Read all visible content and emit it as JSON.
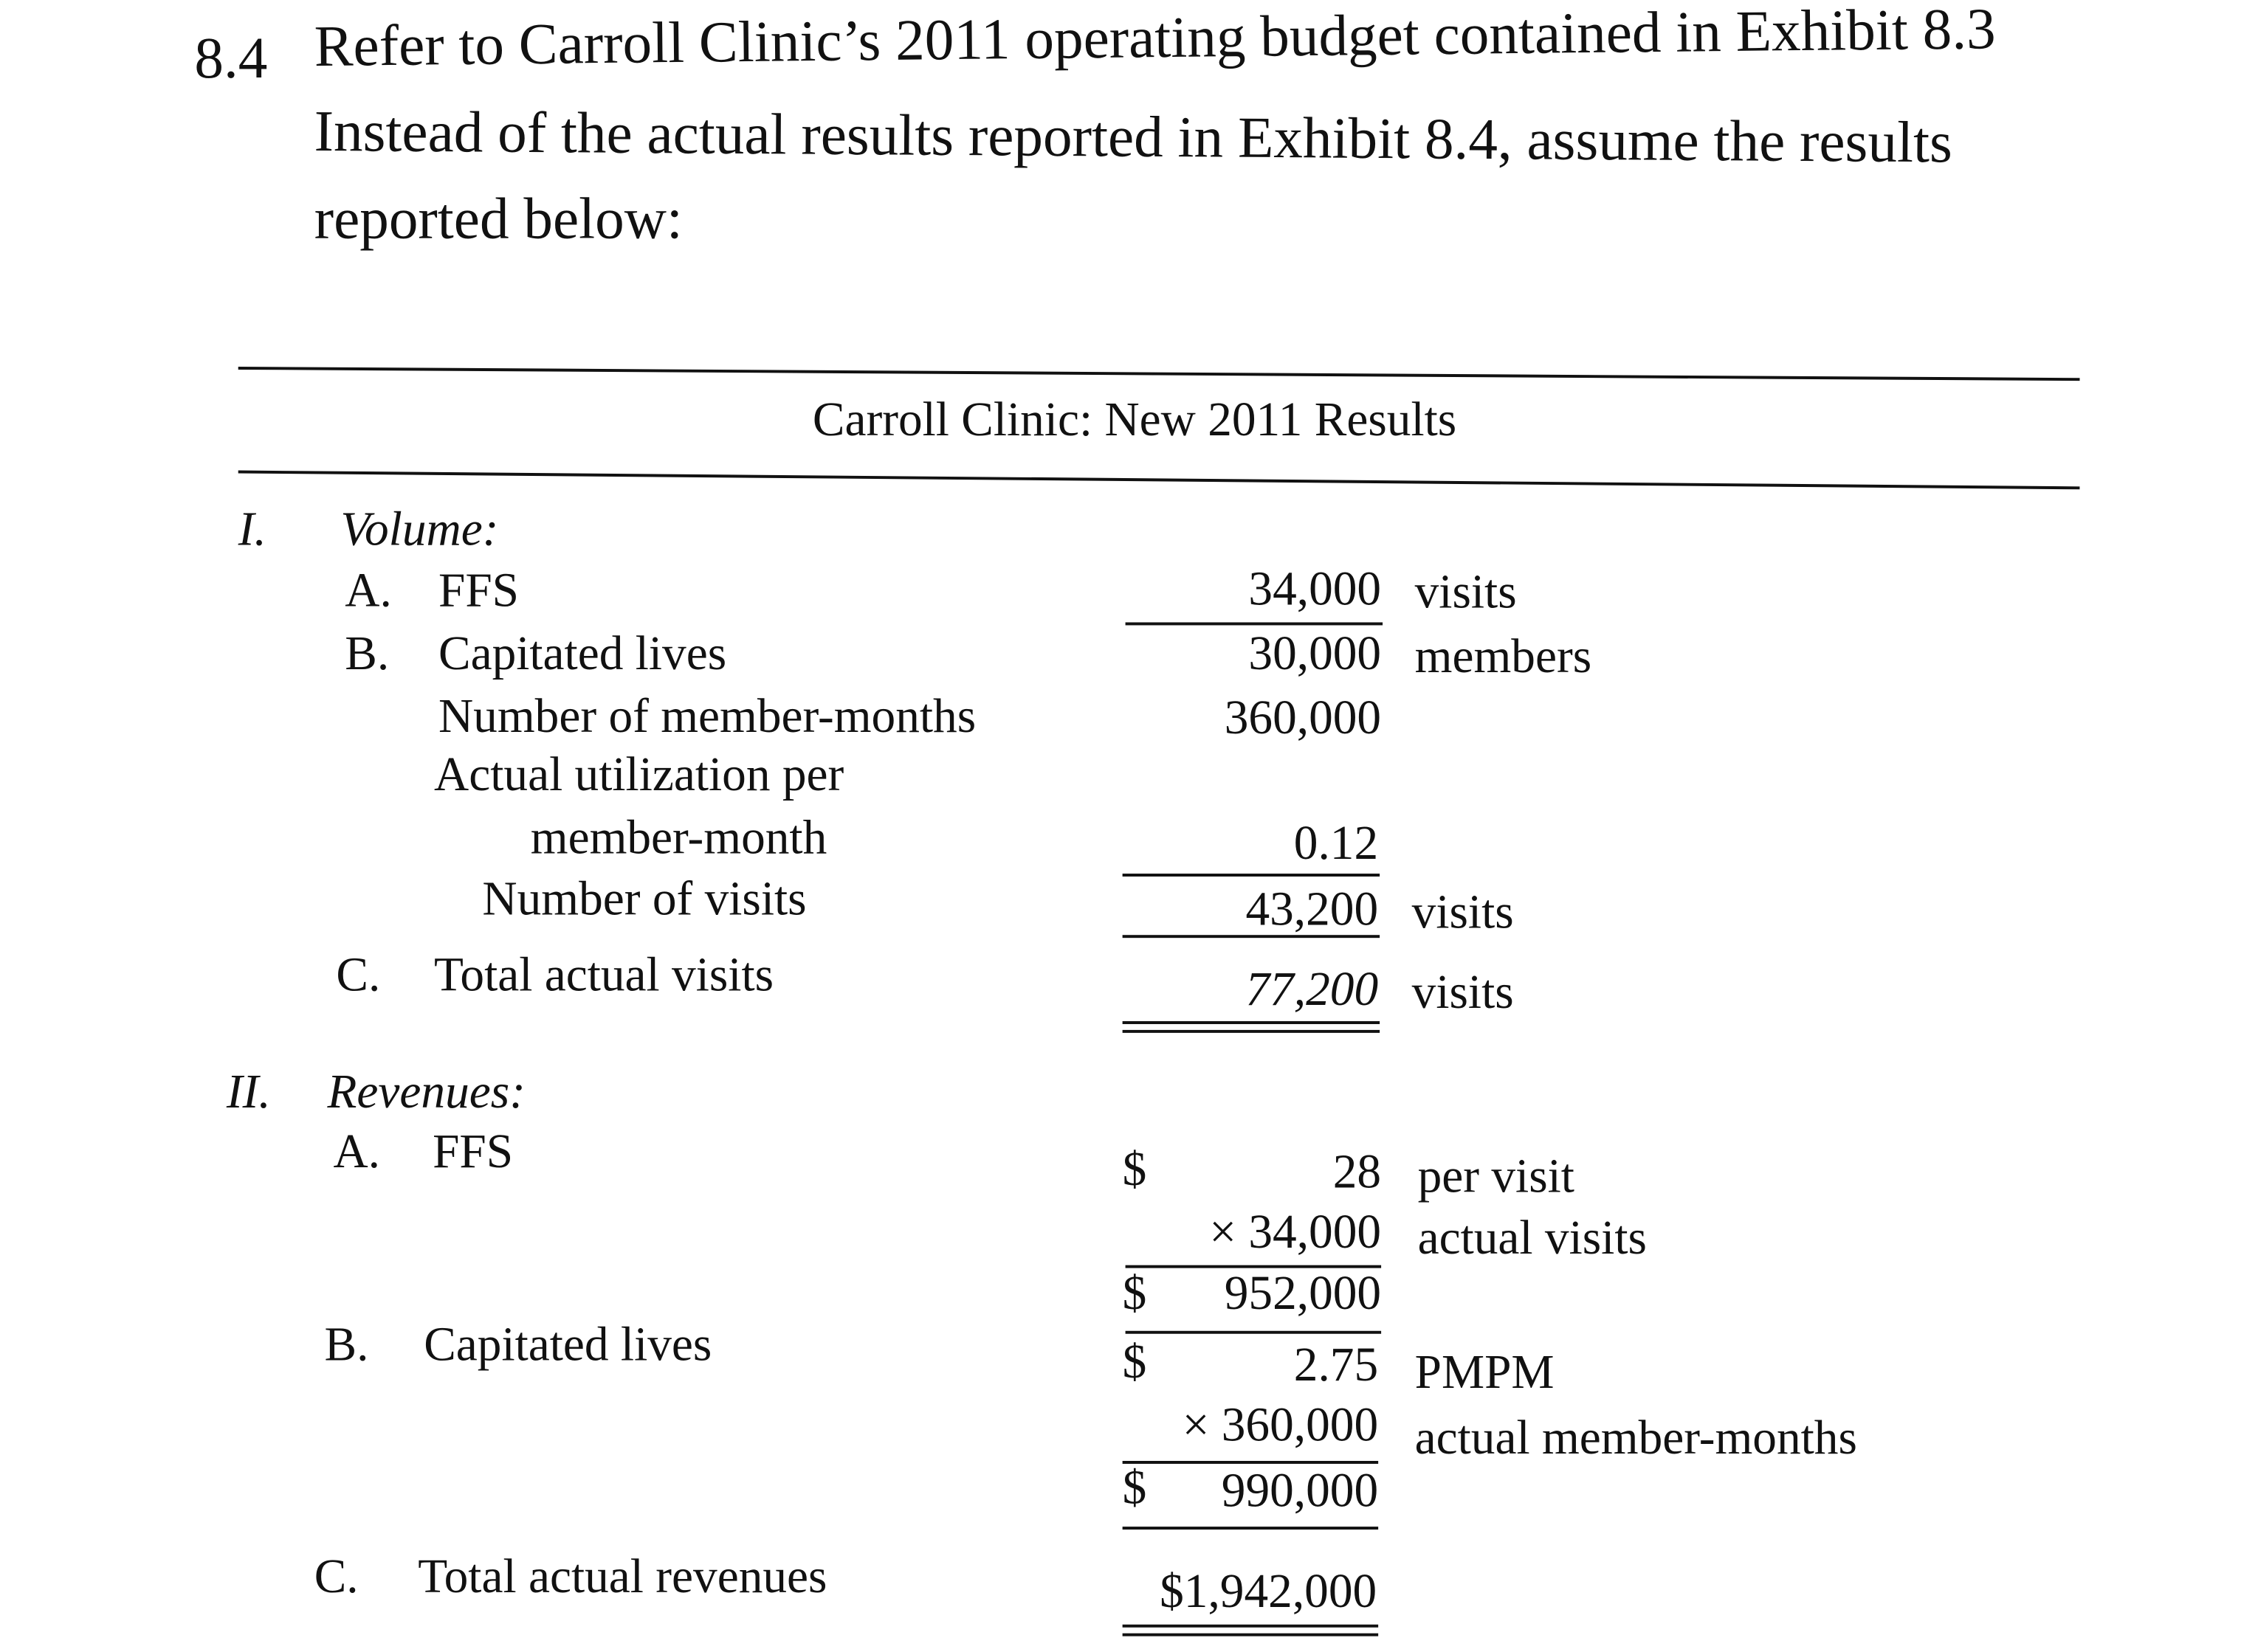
{
  "problem": {
    "number": "8.4",
    "line1": "Refer to Carroll Clinic’s 2011 operating budget contained in Exhibit 8.3",
    "line2": "Instead of the actual results reported in Exhibit 8.4, assume the results",
    "line3": "reported below:"
  },
  "table": {
    "title": "Carroll Clinic: New 2011 Results",
    "volume": {
      "roman": "I.",
      "heading": "Volume:",
      "a_letter": "A.",
      "a_label": "FFS",
      "a_value": "34,000",
      "a_unit": "visits",
      "b_letter": "B.",
      "b_label": "Capitated lives",
      "b_value": "30,000",
      "b_unit": "members",
      "mm_label": "Number of member-months",
      "mm_value": "360,000",
      "util_label1": "Actual utilization per",
      "util_label2": "member-month",
      "util_value": "0.12",
      "visits_label": "Number of visits",
      "visits_value": "43,200",
      "visits_unit": "visits",
      "c_letter": "C.",
      "c_label": "Total actual visits",
      "c_value": "77,200",
      "c_unit": "visits"
    },
    "revenues": {
      "roman": "II.",
      "heading": "Revenues:",
      "a_letter": "A.",
      "a_label": "FFS",
      "a_rate_sign": "$",
      "a_rate": "28",
      "a_rate_unit": "per visit",
      "a_qty": "× 34,000",
      "a_qty_unit": "actual visits",
      "a_total_sign": "$",
      "a_total": "952,000",
      "b_letter": "B.",
      "b_label": "Capitated lives",
      "b_rate_sign": "$",
      "b_rate": "2.75",
      "b_rate_unit": "PMPM",
      "b_qty": "× 360,000",
      "b_qty_unit": "actual member-months",
      "b_total_sign": "$",
      "b_total": "990,000",
      "c_letter": "C.",
      "c_label": "Total actual revenues",
      "c_total": "$1,942,000"
    }
  }
}
